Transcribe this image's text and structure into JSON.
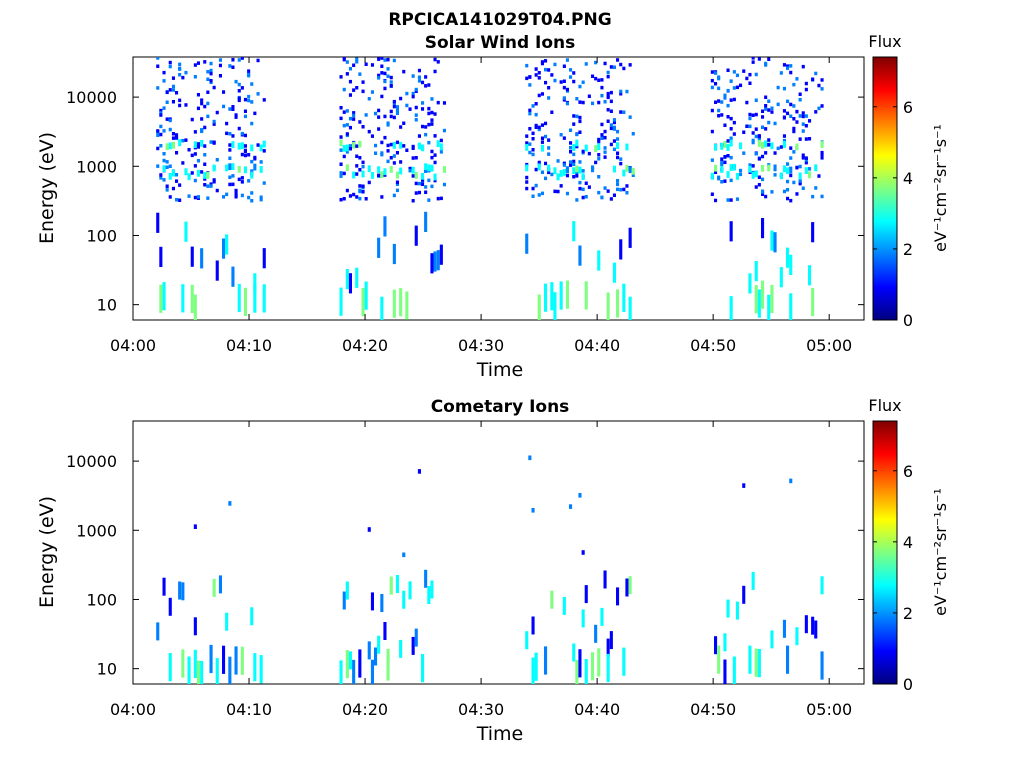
{
  "figure": {
    "title": "RPCICA141029T04.PNG"
  },
  "colormap": [
    "#00007f",
    "#0000ff",
    "#007fff",
    "#00ffff",
    "#7fff7f",
    "#ffff00",
    "#ff7f00",
    "#ff0000",
    "#7f0000"
  ],
  "colorbar": {
    "label": "Flux",
    "unit": "eV⁻¹cm⁻²sr⁻¹s⁻¹",
    "min": 0,
    "max": 7.4,
    "ticks": [
      "0",
      "2",
      "4",
      "6"
    ]
  },
  "axes": {
    "xlabel": "Time",
    "ylabel": "Energy (eV)",
    "x_ticks": [
      "04:00",
      "04:10",
      "04:20",
      "04:30",
      "04:40",
      "04:50",
      "05:00"
    ],
    "y_ticks": [
      "10",
      "100",
      "1000",
      "10000"
    ],
    "x_range_min": [
      0,
      63
    ],
    "y_range_eV": [
      6,
      38000
    ],
    "y_scale": "log"
  },
  "chart_data": [
    {
      "type": "heatmap",
      "title": "Solar Wind Ions",
      "x_unit": "minutes after 04:00",
      "bursts": [
        {
          "start": 2.0,
          "end": 11.3,
          "levels": "dense high-energy 300-30000 eV, 700-1000 eV band, sparse low 8-100 eV"
        },
        {
          "start": 17.8,
          "end": 26.8,
          "levels": "dense high-energy 300-30000 eV, 700-1000 eV band, sparse low 8-100 eV"
        },
        {
          "start": 33.8,
          "end": 43.2,
          "levels": "dense high-energy 300-30000 eV, 700-1000 eV band, sparse low 8-100 eV"
        },
        {
          "start": 49.8,
          "end": 59.5,
          "levels": "dense high-energy 300-30000 eV, 700-1000 eV band, sparse low 8-100 eV"
        }
      ],
      "seed": 7
    },
    {
      "type": "heatmap",
      "title": "Cometary Ions",
      "x_unit": "minutes after 04:00",
      "bursts": [
        {
          "start": 2.0,
          "end": 11.3,
          "levels": "mostly 8-200 eV, sparse points up to 15000 eV"
        },
        {
          "start": 17.8,
          "end": 26.8,
          "levels": "mostly 8-200 eV, sparse points up to 3500 eV"
        },
        {
          "start": 33.8,
          "end": 43.2,
          "levels": "mostly 8-200 eV, sparse points up to 3500 eV"
        },
        {
          "start": 49.8,
          "end": 59.5,
          "levels": "mostly 8-200 eV, sparse points up to 30000 eV"
        }
      ],
      "seed": 23
    }
  ]
}
